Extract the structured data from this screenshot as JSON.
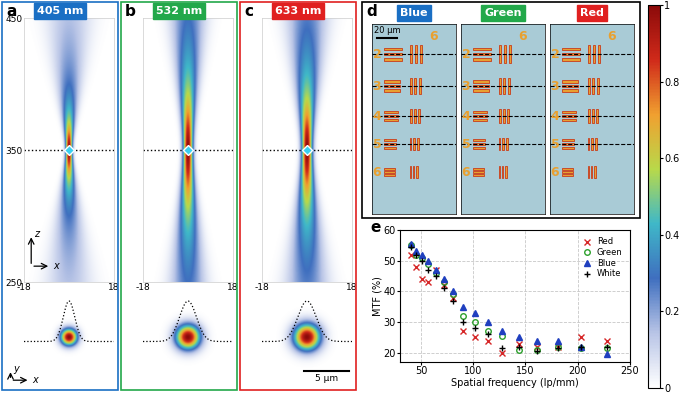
{
  "panels": [
    {
      "label": "a",
      "title": "405 nm",
      "color": "#1a6fc4",
      "fwhm_um": 1.5,
      "dof_um": 30,
      "focus_z": 350,
      "xlim": [
        -18,
        18
      ],
      "xticks": [
        -18,
        18
      ],
      "ylim": [
        250,
        450
      ],
      "yticks": [
        250,
        350,
        450
      ],
      "tick_labels": true,
      "axes_labels": {
        "vertical": "z",
        "horizontal": "x"
      },
      "spot_axes_labels": {
        "vertical": "y",
        "horizontal": "x"
      },
      "spot_xlim": [
        -5,
        5
      ]
    },
    {
      "label": "b",
      "title": "532 nm",
      "color": "#22a84a",
      "fwhm_um": 2.2,
      "dof_um": 60,
      "focus_z": 350,
      "xlim": [
        -18,
        18
      ],
      "xticks": [
        -18,
        18
      ],
      "ylim": [
        250,
        450
      ],
      "tick_labels": "x",
      "spot_xlim": [
        -5,
        5
      ]
    },
    {
      "label": "c",
      "title": "633 nm",
      "color": "#e02020",
      "fwhm_um": 2.4,
      "dof_um": 55,
      "focus_z": 350,
      "xlim": [
        -18,
        18
      ],
      "xticks": [
        -18,
        18
      ],
      "ylim": [
        250,
        450
      ],
      "tick_labels": "x",
      "spot_xlim": [
        -5,
        5
      ],
      "scale_bar": {
        "length": 5,
        "label": "5 μm"
      }
    }
  ],
  "target_panel": {
    "label": "d",
    "images": [
      {
        "title": "Blue",
        "color": "#1a6fc4"
      },
      {
        "title": "Green",
        "color": "#22a84a"
      },
      {
        "title": "Red",
        "color": "#e02020"
      }
    ],
    "scale_bar": {
      "length": 20,
      "label": "20 μm"
    },
    "group_label": "6",
    "element_labels": [
      "2",
      "3",
      "4",
      "5",
      "6"
    ]
  },
  "chart_data": {
    "label": "e",
    "type": "scatter",
    "xlabel": "Spatial frequency (lp/mm)",
    "ylabel": "MTF (%)",
    "x": [
      40.3,
      45.3,
      50.8,
      57.0,
      64.0,
      71.8,
      80.6,
      90.5,
      101.6,
      114.0,
      128.0,
      143.7,
      161.3,
      181.0,
      203.2,
      228.1
    ],
    "series": [
      {
        "name": "Red",
        "color": "#d62728",
        "marker": "x",
        "values": [
          52,
          48,
          44,
          43,
          47,
          42,
          38,
          27,
          25,
          24,
          20,
          23,
          22,
          22,
          25,
          24
        ]
      },
      {
        "name": "Green",
        "color": "#2ca02c",
        "marker": "o",
        "values": [
          55,
          52,
          51,
          49,
          46,
          43,
          39,
          32,
          30,
          27,
          25.5,
          21,
          21,
          22,
          21.5,
          21.5
        ]
      },
      {
        "name": "Blue",
        "color": "#1f3fbf",
        "marker": "^",
        "values": [
          55.5,
          53,
          52,
          50,
          47,
          44,
          40,
          35,
          33,
          30,
          27,
          25,
          24,
          24,
          22,
          19.5
        ]
      },
      {
        "name": "White",
        "color": "#000000",
        "marker": "+",
        "values": [
          54.5,
          52,
          50,
          47,
          45,
          41,
          37,
          30,
          28,
          26,
          21.5,
          22,
          20.5,
          21.5,
          22,
          22
        ]
      }
    ],
    "xlim": [
      30,
      250
    ],
    "xticks": [
      50,
      100,
      150,
      200,
      250
    ],
    "ylim": [
      17,
      60
    ],
    "yticks": [
      20,
      30,
      40,
      50,
      60
    ],
    "grid": true,
    "legend": "upper right"
  },
  "colorbar": {
    "range": [
      0,
      1
    ],
    "ticks": [
      0,
      0.2,
      0.4,
      0.6,
      0.8,
      1
    ]
  }
}
